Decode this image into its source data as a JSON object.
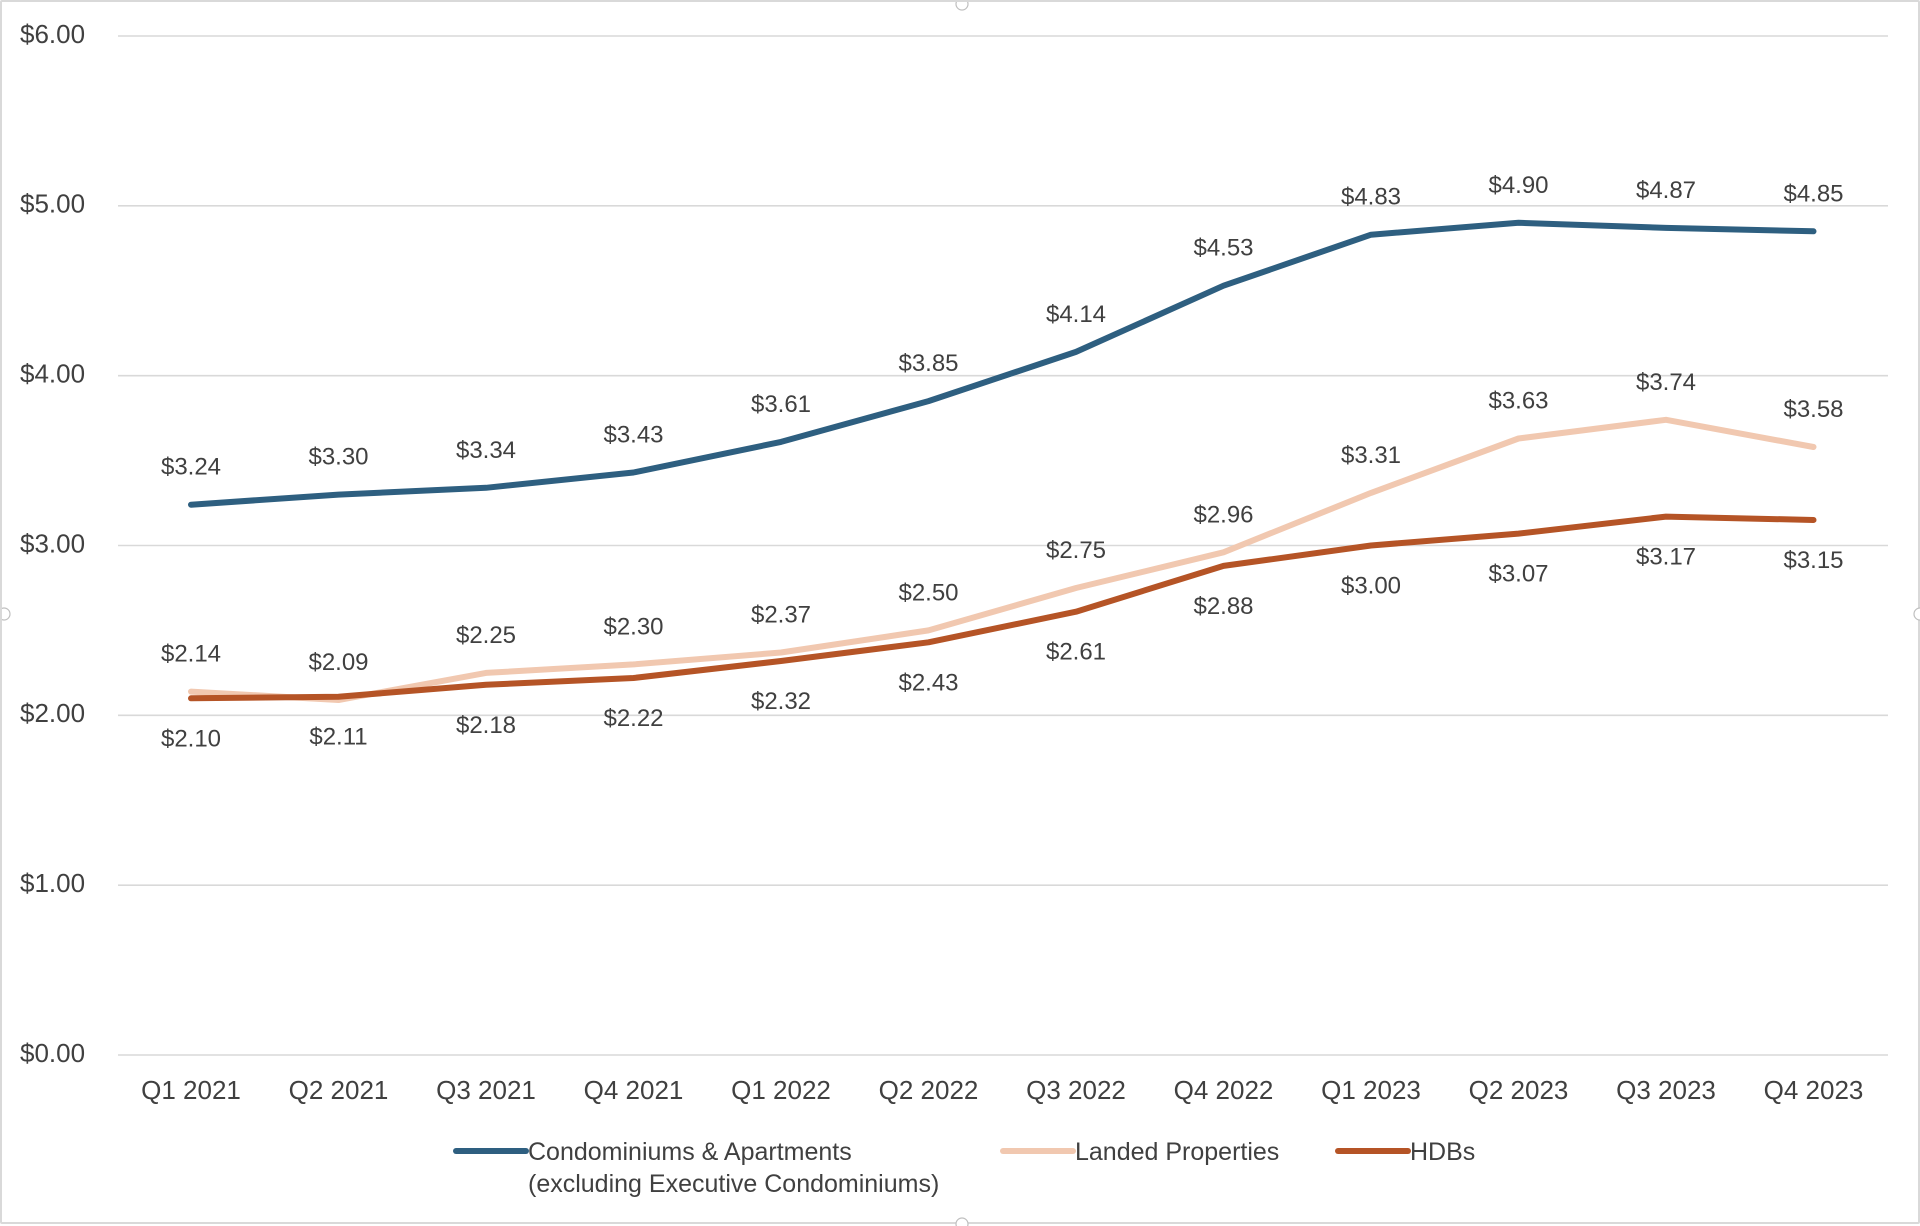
{
  "chart_data": {
    "type": "line",
    "title": "",
    "xlabel": "",
    "ylabel": "",
    "ylim": [
      0,
      6
    ],
    "y_ticks": [
      "$0.00",
      "$1.00",
      "$2.00",
      "$3.00",
      "$4.00",
      "$5.00",
      "$6.00"
    ],
    "grid": true,
    "legend_position": "bottom",
    "categories": [
      "Q1 2021",
      "Q2 2021",
      "Q3 2021",
      "Q4 2021",
      "Q1 2022",
      "Q2 2022",
      "Q3 2022",
      "Q4 2022",
      "Q1 2023",
      "Q2 2023",
      "Q3 2023",
      "Q4 2023"
    ],
    "series": [
      {
        "name": "Condominiums & Apartments (excluding Executive Condominiums)",
        "legend_lines": [
          "Condominiums & Apartments",
          "(excluding Executive Condominiums)"
        ],
        "color": "#2e5f80",
        "values": [
          3.24,
          3.3,
          3.34,
          3.43,
          3.61,
          3.85,
          4.14,
          4.53,
          4.83,
          4.9,
          4.87,
          4.85
        ],
        "labels": [
          "$3.24",
          "$3.30",
          "$3.34",
          "$3.43",
          "$3.61",
          "$3.85",
          "$4.14",
          "$4.53",
          "$4.83",
          "$4.90",
          "$4.87",
          "$4.85"
        ],
        "label_placement": "above"
      },
      {
        "name": "Landed Properties",
        "legend_lines": [
          "Landed Properties"
        ],
        "color": "#f1c8b0",
        "values": [
          2.14,
          2.09,
          2.25,
          2.3,
          2.37,
          2.5,
          2.75,
          2.96,
          3.31,
          3.63,
          3.74,
          3.58
        ],
        "labels": [
          "$2.14",
          "$2.09",
          "$2.25",
          "$2.30",
          "$2.37",
          "$2.50",
          "$2.75",
          "$2.96",
          "$3.31",
          "$3.63",
          "$3.74",
          "$3.58"
        ],
        "label_placement": "above"
      },
      {
        "name": "HDBs",
        "legend_lines": [
          "HDBs"
        ],
        "color": "#b55426",
        "values": [
          2.1,
          2.11,
          2.18,
          2.22,
          2.32,
          2.43,
          2.61,
          2.88,
          3.0,
          3.07,
          3.17,
          3.15
        ],
        "labels": [
          "$2.10",
          "$2.11",
          "$2.18",
          "$2.22",
          "$2.32",
          "$2.43",
          "$2.61",
          "$2.88",
          "$3.00",
          "$3.07",
          "$3.17",
          "$3.15"
        ],
        "label_placement": "below"
      }
    ]
  }
}
